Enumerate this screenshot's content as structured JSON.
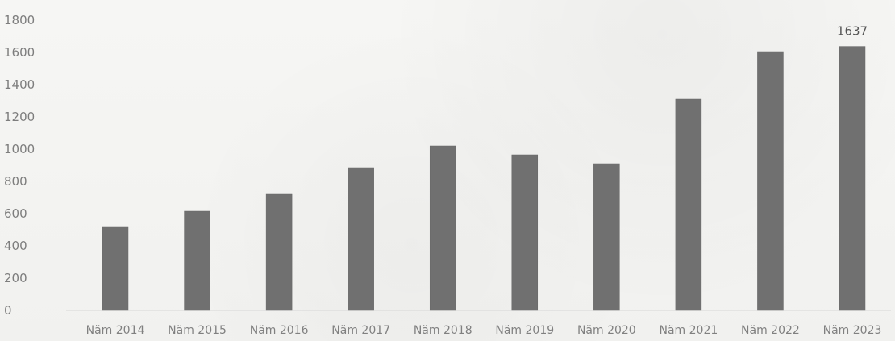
{
  "chart_data": {
    "type": "bar",
    "categories": [
      "Năm 2014",
      "Năm 2015",
      "Năm 2016",
      "Năm 2017",
      "Năm 2018",
      "Năm 2019",
      "Năm 2020",
      "Năm 2021",
      "Năm 2022",
      "Năm 2023"
    ],
    "values": [
      520,
      615,
      720,
      885,
      1020,
      965,
      910,
      1310,
      1605,
      1637
    ],
    "data_labels": [
      {
        "category": "Năm 2023",
        "text": "1637"
      }
    ],
    "title": "",
    "xlabel": "",
    "ylabel": "",
    "ylim": [
      0,
      1800
    ],
    "yticks": [
      "0",
      "200",
      "400",
      "600",
      "800",
      "1000",
      "1200",
      "1400",
      "1600",
      "1800"
    ],
    "grid": false,
    "bar_color": "#707070"
  }
}
